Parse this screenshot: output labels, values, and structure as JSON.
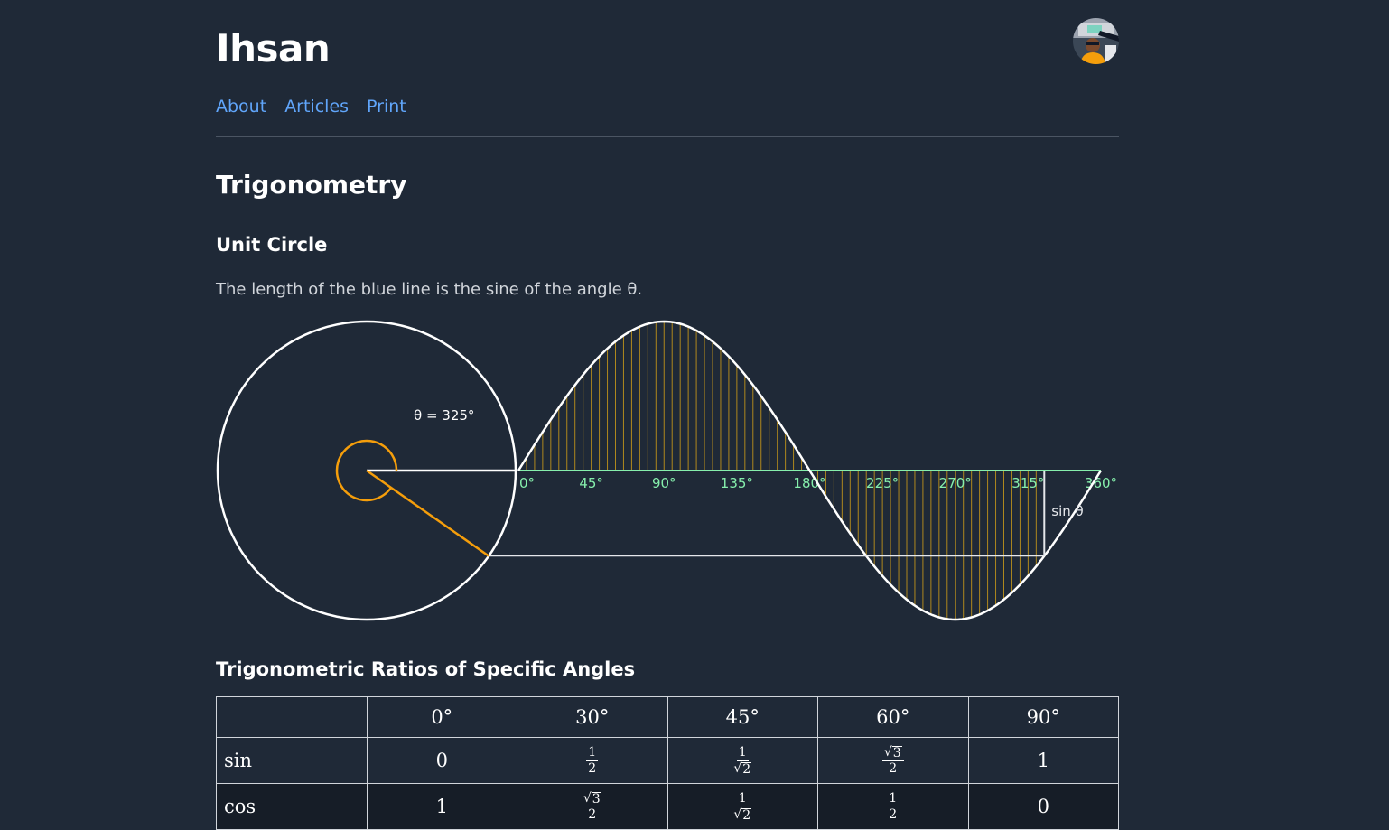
{
  "site": {
    "title": "Ihsan",
    "avatar_icon": "avatar-photo"
  },
  "nav": {
    "items": [
      "About",
      "Articles",
      "Print"
    ]
  },
  "page": {
    "title": "Trigonometry"
  },
  "unit_circle": {
    "heading": "Unit Circle",
    "description": "The length of the blue line is the sine of the angle θ.",
    "angle_label": "θ = 325°",
    "angle_deg": 325,
    "sine_label": "sin θ",
    "axis_ticks": [
      "0°",
      "45°",
      "90°",
      "135°",
      "180°",
      "225°",
      "270°",
      "315°",
      "360°"
    ],
    "colors": {
      "circle": "#ffffff",
      "angle": "#f59e0b",
      "axis": "#86efac",
      "hatch": "#d4a017"
    }
  },
  "ratios": {
    "heading": "Trigonometric Ratios of Specific Angles",
    "columns": [
      "",
      "0°",
      "30°",
      "45°",
      "60°",
      "90°"
    ],
    "rows": [
      {
        "label": "sin",
        "cells": [
          {
            "num": "0"
          },
          {
            "num": "1",
            "den": "2"
          },
          {
            "num": "1",
            "den": "2",
            "den_sqrt": true
          },
          {
            "num": "3",
            "num_sqrt": true,
            "den": "2"
          },
          {
            "num": "1"
          }
        ]
      },
      {
        "label": "cos",
        "cells": [
          {
            "num": "1"
          },
          {
            "num": "3",
            "num_sqrt": true,
            "den": "2"
          },
          {
            "num": "1",
            "den": "2",
            "den_sqrt": true
          },
          {
            "num": "1",
            "den": "2"
          },
          {
            "num": "0"
          }
        ]
      }
    ]
  },
  "chart_data": {
    "type": "line",
    "series": [
      {
        "x": [
          0,
          45,
          90,
          135,
          180,
          225,
          270,
          315,
          360
        ],
        "y": [
          0,
          0.707,
          1,
          0.707,
          0,
          -0.707,
          -1,
          -0.707,
          0
        ]
      }
    ],
    "xlim": [
      0,
      360
    ],
    "ylim": [
      -1,
      1
    ],
    "x_ticks": [
      "0°",
      "45°",
      "90°",
      "135°",
      "180°",
      "225°",
      "270°",
      "315°",
      "360°"
    ],
    "annotations": [
      "θ = 325°",
      "sin θ"
    ],
    "highlight_x": 325
  }
}
